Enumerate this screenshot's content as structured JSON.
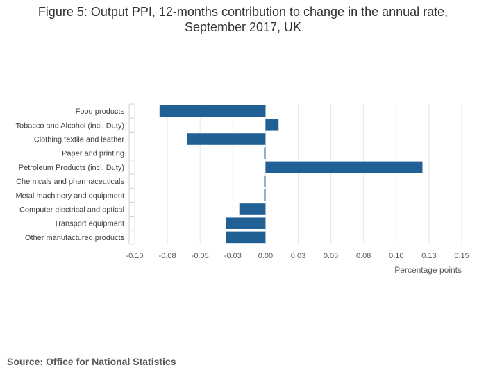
{
  "title": {
    "line1": "Figure 5: Output PPI, 12-months contribution to change in the annual rate,",
    "line2": "September 2017, UK"
  },
  "source": "Source: Office for National Statistics",
  "colors": {
    "bar": "#206095",
    "grid": "#e6e6e6",
    "axis_text": "#595959",
    "category_text": "#414042"
  },
  "chart_data": {
    "type": "bar",
    "orientation": "horizontal",
    "categories": [
      "Food products",
      "Tobacco and Alcohol (incl. Duty)",
      "Clothing textile and leather",
      "Paper and printing",
      "Petroleum Products (incl. Duty)",
      "Chemicals and pharmaceuticals",
      "Metal machinery and equipment",
      "Computer electrical and optical",
      "Transport equipment",
      "Other manufactured products"
    ],
    "values": [
      -0.081,
      0.01,
      -0.06,
      -0.001,
      0.12,
      -0.001,
      -0.001,
      -0.02,
      -0.03,
      -0.03
    ],
    "xlim": [
      -0.1,
      0.15
    ],
    "ticks": [
      -0.1,
      -0.075,
      -0.05,
      -0.025,
      0.0,
      0.025,
      0.05,
      0.075,
      0.1,
      0.125,
      0.15
    ],
    "tick_labels": [
      "-0.10",
      "-0.08",
      "-0.05",
      "-0.03",
      "0.00",
      "0.03",
      "0.05",
      "0.08",
      "0.10",
      "0.13",
      "0.15"
    ],
    "xlabel": "Percentage points",
    "ylabel": "",
    "grid": true,
    "legend": "none"
  }
}
